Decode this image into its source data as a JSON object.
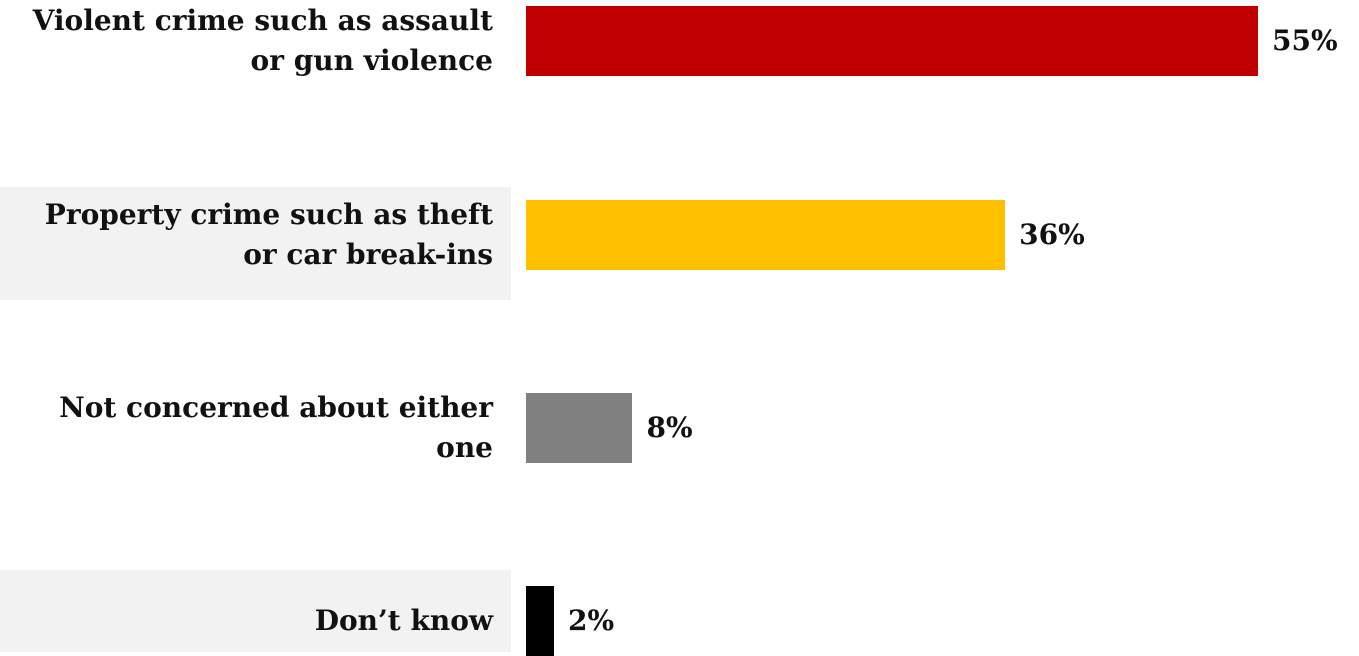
{
  "chart_data": {
    "type": "bar",
    "orientation": "horizontal",
    "categories": [
      "Violent crime such as assault or gun violence",
      "Property crime such as theft or car break-ins",
      "Not concerned about either one",
      "Don’t know"
    ],
    "values": [
      55,
      36,
      8,
      2
    ],
    "value_labels": [
      "55%",
      "36%",
      "8%",
      "2%"
    ],
    "colors": [
      "#c00000",
      "#ffc000",
      "#808080",
      "#000000"
    ],
    "band_color": "#f2f2f2",
    "banded_rows": [
      1,
      3
    ],
    "xlim": [
      0,
      55
    ],
    "grid": false,
    "legend": "none"
  }
}
